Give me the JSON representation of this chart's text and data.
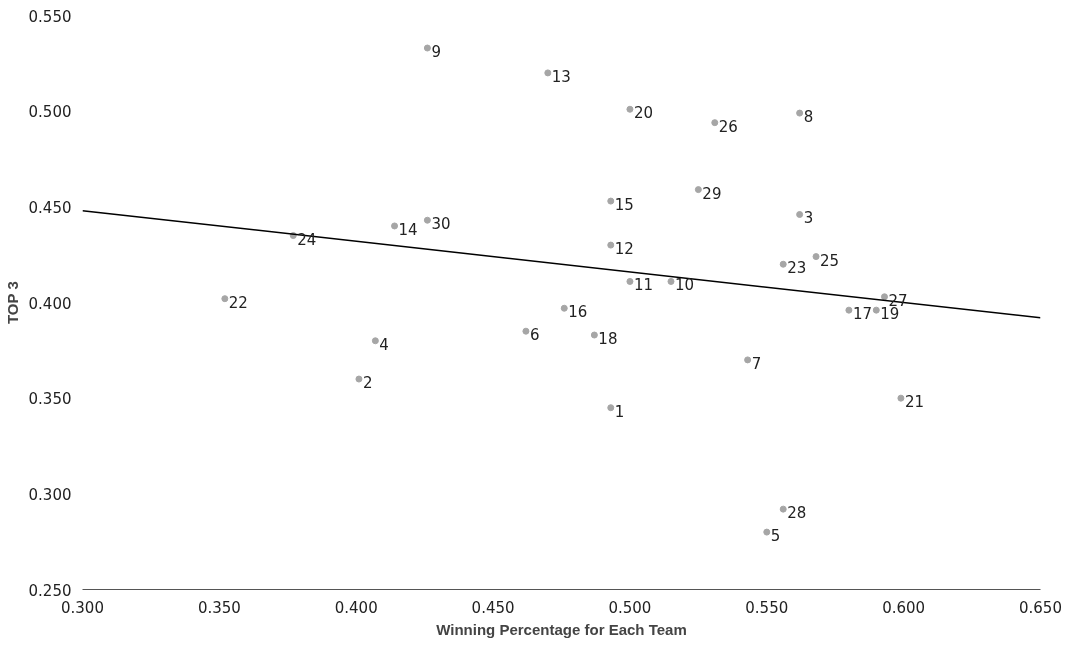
{
  "chart_data": {
    "type": "scatter",
    "xlabel": "Winning Percentage for Each Team",
    "ylabel": "TOP 3",
    "xlim": [
      0.3,
      0.65
    ],
    "ylim": [
      0.25,
      0.55
    ],
    "xticks": [
      {
        "value": 0.3,
        "label": "0.300"
      },
      {
        "value": 0.35,
        "label": "0.350"
      },
      {
        "value": 0.4,
        "label": "0.400"
      },
      {
        "value": 0.45,
        "label": "0.450"
      },
      {
        "value": 0.5,
        "label": "0.500"
      },
      {
        "value": 0.55,
        "label": "0.550"
      },
      {
        "value": 0.6,
        "label": "0.600"
      },
      {
        "value": 0.65,
        "label": "0.650"
      }
    ],
    "yticks": [
      {
        "value": 0.25,
        "label": "0.250"
      },
      {
        "value": 0.3,
        "label": "0.300"
      },
      {
        "value": 0.35,
        "label": "0.350"
      },
      {
        "value": 0.4,
        "label": "0.400"
      },
      {
        "value": 0.45,
        "label": "0.450"
      },
      {
        "value": 0.5,
        "label": "0.500"
      },
      {
        "value": 0.55,
        "label": "0.550"
      }
    ],
    "grid": false,
    "marker": "circle",
    "series": [
      {
        "color": "#a6a6a6",
        "x": [
          0.493,
          0.401,
          0.562,
          0.407,
          0.55,
          0.462,
          0.543,
          0.562,
          0.426,
          0.515,
          0.5,
          0.493,
          0.47,
          0.414,
          0.493,
          0.476,
          0.58,
          0.487,
          0.59,
          0.5,
          0.599,
          0.352,
          0.556,
          0.377,
          0.568,
          0.531,
          0.593,
          0.556,
          0.525,
          0.426
        ],
        "values": [
          0.345,
          0.36,
          0.446,
          0.38,
          0.28,
          0.385,
          0.37,
          0.499,
          0.533,
          0.411,
          0.411,
          0.43,
          0.52,
          0.44,
          0.453,
          0.397,
          0.396,
          0.383,
          0.396,
          0.501,
          0.35,
          0.402,
          0.42,
          0.435,
          0.424,
          0.494,
          0.403,
          0.292,
          0.459,
          0.443
        ]
      },
      {
        "type": "line",
        "color": "#000000",
        "marker": "none",
        "line_style": "solid",
        "x": [
          0.3,
          0.65
        ],
        "values": [
          0.448,
          0.392
        ]
      }
    ],
    "annotations": [
      {
        "text": "1",
        "x": 0.493,
        "y": 0.345
      },
      {
        "text": "2",
        "x": 0.401,
        "y": 0.36
      },
      {
        "text": "3",
        "x": 0.562,
        "y": 0.446
      },
      {
        "text": "4",
        "x": 0.407,
        "y": 0.38
      },
      {
        "text": "5",
        "x": 0.55,
        "y": 0.28
      },
      {
        "text": "6",
        "x": 0.462,
        "y": 0.385
      },
      {
        "text": "7",
        "x": 0.543,
        "y": 0.37
      },
      {
        "text": "8",
        "x": 0.562,
        "y": 0.499
      },
      {
        "text": "9",
        "x": 0.426,
        "y": 0.533
      },
      {
        "text": "10",
        "x": 0.515,
        "y": 0.411
      },
      {
        "text": "11",
        "x": 0.5,
        "y": 0.411
      },
      {
        "text": "12",
        "x": 0.493,
        "y": 0.43
      },
      {
        "text": "13",
        "x": 0.47,
        "y": 0.52
      },
      {
        "text": "14",
        "x": 0.414,
        "y": 0.44
      },
      {
        "text": "15",
        "x": 0.493,
        "y": 0.453
      },
      {
        "text": "16",
        "x": 0.476,
        "y": 0.397
      },
      {
        "text": "17",
        "x": 0.58,
        "y": 0.396
      },
      {
        "text": "18",
        "x": 0.487,
        "y": 0.383
      },
      {
        "text": "19",
        "x": 0.59,
        "y": 0.396
      },
      {
        "text": "20",
        "x": 0.5,
        "y": 0.501
      },
      {
        "text": "21",
        "x": 0.599,
        "y": 0.35
      },
      {
        "text": "22",
        "x": 0.352,
        "y": 0.402
      },
      {
        "text": "23",
        "x": 0.556,
        "y": 0.42
      },
      {
        "text": "24",
        "x": 0.377,
        "y": 0.435
      },
      {
        "text": "25",
        "x": 0.568,
        "y": 0.424
      },
      {
        "text": "26",
        "x": 0.531,
        "y": 0.494
      },
      {
        "text": "27",
        "x": 0.593,
        "y": 0.403
      },
      {
        "text": "28",
        "x": 0.556,
        "y": 0.292
      },
      {
        "text": "29",
        "x": 0.525,
        "y": 0.459
      },
      {
        "text": "30",
        "x": 0.426,
        "y": 0.443
      }
    ]
  }
}
